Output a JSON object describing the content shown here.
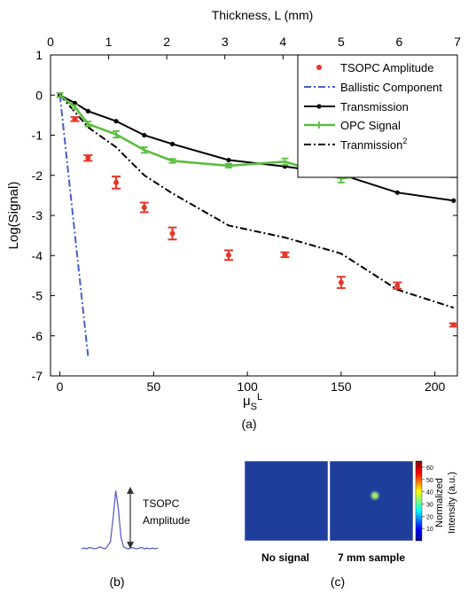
{
  "chart_data": [
    {
      "panel_label": "(a)",
      "type": "line",
      "ylabel": "Log(Signal)",
      "xlabel_base": "μ",
      "xlabel_sub": "S",
      "xlabel_sup": "L",
      "top_axis_label": "Thickness, L (mm)",
      "xlim": [
        -5,
        212
      ],
      "ylim": [
        -7,
        1
      ],
      "top_xlim": [
        0,
        7
      ],
      "x_ticks": [
        0,
        50,
        100,
        150,
        200
      ],
      "y_ticks": [
        1,
        0,
        -1,
        -2,
        -3,
        -4,
        -5,
        -6,
        -7
      ],
      "top_ticks": [
        0,
        1,
        2,
        3,
        4,
        5,
        6,
        7
      ],
      "grid": false,
      "legend_position": "top-right",
      "series": [
        {
          "name": "TSOPC Amplitude",
          "kind": "errorbar",
          "color": "#e8362a",
          "x": [
            8,
            15,
            30,
            45,
            60,
            90,
            120,
            150,
            180,
            210
          ],
          "y": [
            -0.6,
            -1.57,
            -2.18,
            -2.8,
            -3.45,
            -3.99,
            -3.98,
            -4.67,
            -4.75,
            -5.73
          ],
          "err": [
            0.05,
            0.07,
            0.15,
            0.12,
            0.15,
            0.12,
            0.06,
            0.14,
            0.08,
            0.04
          ]
        },
        {
          "name": "Ballistic Component",
          "kind": "line",
          "dash": "dashdot",
          "color": "#4a5cc8",
          "x": [
            0,
            15
          ],
          "y": [
            0,
            -6.5
          ]
        },
        {
          "name": "Transmission",
          "kind": "line-marker",
          "color": "#000000",
          "x": [
            0,
            8,
            15,
            30,
            45,
            60,
            90,
            120,
            150,
            180,
            210
          ],
          "y": [
            0,
            -0.2,
            -0.4,
            -0.65,
            -1.0,
            -1.22,
            -1.62,
            -1.78,
            -1.98,
            -2.43,
            -2.63
          ]
        },
        {
          "name": "OPC Signal",
          "kind": "errorbar-line",
          "color": "#5cbd40",
          "x": [
            0,
            8,
            15,
            30,
            45,
            60,
            90,
            120,
            150,
            180,
            210
          ],
          "y": [
            0,
            -0.3,
            -0.72,
            -0.98,
            -1.37,
            -1.64,
            -1.76,
            -1.66,
            -2.08,
            -1.88,
            -2.0
          ],
          "err": [
            0.05,
            0.05,
            0.06,
            0.08,
            0.07,
            0.05,
            0.05,
            0.08,
            0.1,
            0.05,
            0.05
          ]
        },
        {
          "name": "Tranmission",
          "name_sup": "2",
          "kind": "line",
          "dash": "dashdot",
          "color": "#000000",
          "x": [
            0,
            8,
            15,
            30,
            45,
            60,
            90,
            120,
            150,
            180,
            210
          ],
          "y": [
            0,
            -0.42,
            -0.8,
            -1.3,
            -2.0,
            -2.45,
            -3.25,
            -3.55,
            -3.95,
            -4.85,
            -5.3
          ]
        }
      ]
    },
    {
      "panel_label": "(b)",
      "type": "line",
      "annotation": [
        "TSOPC",
        "Amplitude"
      ],
      "trace_color": "#5a5fc0",
      "trace": [
        0.07,
        0.08,
        0.07,
        0.09,
        0.08,
        0.07,
        0.08,
        0.1,
        0.08,
        0.07,
        0.12,
        0.18,
        0.55,
        0.98,
        0.7,
        0.25,
        0.1,
        0.08,
        0.07,
        0.09,
        0.08,
        0.07,
        0.08,
        0.09,
        0.07,
        0.08,
        0.07,
        0.08,
        0.07,
        0.08
      ]
    },
    {
      "panel_label": "(c)",
      "type": "heatmap",
      "image_labels": [
        "No signal",
        "7 mm sample"
      ],
      "colorbar_label": [
        "Normalized",
        "Intensity (a.u.)"
      ],
      "colorbar_ticks": [
        60,
        50,
        40,
        30,
        20,
        10
      ],
      "colorbar_range": [
        0,
        65
      ],
      "background_color": "#1f3d9b",
      "spot_color": "#e8d24a"
    }
  ]
}
